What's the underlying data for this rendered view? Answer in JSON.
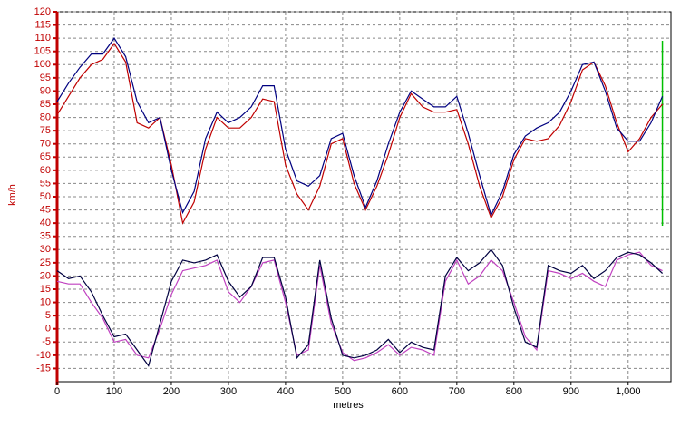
{
  "chart_data": {
    "type": "line",
    "x_label": "metres",
    "y_label": "km/h",
    "y_label_color": "#c00000",
    "tick_color": "#c00000",
    "x": [
      0,
      20,
      40,
      60,
      80,
      100,
      120,
      140,
      160,
      180,
      200,
      220,
      240,
      260,
      280,
      300,
      320,
      340,
      360,
      380,
      400,
      420,
      440,
      460,
      480,
      500,
      520,
      540,
      560,
      580,
      600,
      620,
      640,
      660,
      680,
      700,
      720,
      740,
      760,
      780,
      800,
      820,
      840,
      860,
      880,
      900,
      920,
      940,
      960,
      980,
      1000,
      1020,
      1040,
      1060
    ],
    "series": [
      {
        "color": "#c00000",
        "values": [
          81,
          88,
          95,
          100,
          102,
          108,
          101,
          78,
          76,
          80,
          62,
          40,
          48,
          68,
          80,
          76,
          76,
          80,
          87,
          86,
          62,
          51,
          45,
          54,
          70,
          72,
          55,
          45,
          54,
          66,
          80,
          89,
          84,
          82,
          82,
          83,
          70,
          54,
          42,
          50,
          64,
          72,
          71,
          72,
          77,
          86,
          98,
          101,
          92,
          78,
          67,
          72,
          80,
          85
        ]
      },
      {
        "color": "#000080",
        "values": [
          86,
          93,
          99,
          104,
          104,
          110,
          103,
          86,
          78,
          80,
          60,
          44,
          52,
          72,
          82,
          78,
          80,
          84,
          92,
          92,
          68,
          56,
          54,
          58,
          72,
          74,
          58,
          46,
          56,
          70,
          82,
          90,
          87,
          84,
          84,
          88,
          74,
          58,
          43,
          52,
          66,
          73,
          76,
          78,
          82,
          90,
          100,
          101,
          90,
          76,
          71,
          71,
          78,
          88
        ]
      },
      {
        "color": "#c040c0",
        "values": [
          18,
          17,
          17,
          10,
          4,
          -5,
          -4,
          -10,
          -11,
          0,
          13,
          22,
          23,
          24,
          26,
          14,
          10,
          16,
          25,
          26,
          10,
          -10,
          -8,
          24,
          2,
          -9,
          -12,
          -11,
          -9,
          -6,
          -10,
          -7,
          -8,
          -10,
          18,
          26,
          17,
          20,
          26,
          22,
          10,
          -3,
          -8,
          22,
          21,
          19,
          21,
          18,
          16,
          26,
          28,
          29,
          24,
          22
        ]
      },
      {
        "color": "#000040",
        "values": [
          22,
          19,
          20,
          14,
          5,
          -3,
          -2,
          -8,
          -14,
          2,
          18,
          26,
          25,
          26,
          28,
          18,
          12,
          16,
          27,
          27,
          12,
          -11,
          -6,
          26,
          4,
          -10,
          -11,
          -10,
          -8,
          -4,
          -9,
          -5,
          -7,
          -8,
          20,
          27,
          22,
          25,
          30,
          24,
          8,
          -5,
          -7,
          24,
          22,
          21,
          24,
          19,
          22,
          27,
          29,
          28,
          25,
          21
        ]
      }
    ],
    "cursor": {
      "x": 1060,
      "y": [
        39,
        109
      ],
      "color": "#00c000"
    },
    "xlim": [
      0,
      1075
    ],
    "xticks": [
      0,
      100,
      200,
      300,
      400,
      500,
      600,
      700,
      800,
      900,
      {
        "value": 1000,
        "label": "1,000"
      }
    ],
    "ylim": [
      -20,
      120
    ],
    "yticks": [
      -15,
      -10,
      -5,
      0,
      5,
      10,
      15,
      20,
      25,
      30,
      35,
      40,
      45,
      50,
      55,
      60,
      65,
      70,
      75,
      80,
      85,
      90,
      95,
      100,
      105,
      110,
      115,
      120
    ],
    "grid": true
  }
}
